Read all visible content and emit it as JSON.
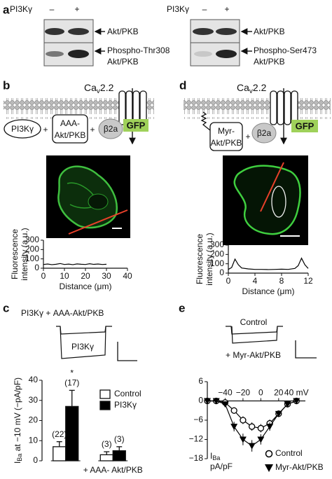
{
  "panel_a": {
    "label": "a",
    "blots": [
      {
        "condition": "PI3Kγ",
        "minus": "–",
        "plus": "+",
        "labels": [
          "Akt/PKB",
          "Phospho-Thr308",
          "Akt/PKB"
        ]
      },
      {
        "condition": "PI3Kγ",
        "minus": "–",
        "plus": "+",
        "labels": [
          "Akt/PKB",
          "Phospho-Ser473",
          "Akt/PKB"
        ]
      }
    ]
  },
  "panel_b": {
    "label": "b",
    "channel": {
      "main": "Ca",
      "sub": "v",
      "rest": "2.2"
    },
    "components": [
      "PI3Kγ",
      "+",
      "AAA-",
      "Akt/PKB",
      "+",
      "β2a",
      "GFP"
    ]
  },
  "panel_d": {
    "label": "d",
    "channel": {
      "main": "Ca",
      "sub": "v",
      "rest": "2.2"
    },
    "components": [
      "Myr-",
      "Akt/PKB",
      "+",
      "β2a",
      "GFP"
    ]
  },
  "panel_c": {
    "label": "c",
    "trace_labels": [
      "PI3Kγ + AAA-Akt/PKB",
      "PI3Kγ"
    ]
  },
  "panel_e": {
    "label": "e",
    "trace_labels": [
      "Control",
      "+ Myr-Akt/PKB"
    ]
  },
  "chart_data": [
    {
      "type": "line",
      "ylabel": [
        "Fluorescence",
        "intensity (a.u.)"
      ],
      "xlabel": "Distance (μm)",
      "x": [
        0,
        2,
        4,
        6,
        8,
        10,
        12,
        14,
        16,
        18,
        20,
        22,
        24,
        26,
        28,
        30
      ],
      "values": [
        40,
        45,
        38,
        42,
        50,
        40,
        44,
        38,
        46,
        42,
        40,
        48,
        41,
        45,
        40,
        42
      ],
      "color": "#000000",
      "xlim": [
        0,
        40
      ],
      "xticks": [
        0,
        10,
        20,
        30,
        40
      ],
      "ylim": [
        0,
        300
      ],
      "yticks": [
        0,
        100,
        200,
        300
      ]
    },
    {
      "type": "line",
      "ylabel": [
        "Fluorescence",
        "intensity (a.u.)"
      ],
      "xlabel": "Distance (μm)",
      "x": [
        0,
        0.5,
        1,
        1.5,
        2,
        3,
        4,
        5,
        6,
        7,
        8,
        9,
        10,
        10.5,
        11,
        11.5,
        12
      ],
      "values": [
        40,
        60,
        150,
        90,
        55,
        45,
        40,
        40,
        38,
        40,
        42,
        40,
        50,
        80,
        160,
        90,
        50
      ],
      "color": "#000000",
      "xlim": [
        0,
        12
      ],
      "xticks": [
        0,
        4,
        8,
        12
      ],
      "ylim": [
        0,
        300
      ],
      "yticks": [
        0,
        100,
        200,
        300
      ]
    },
    {
      "type": "bar",
      "ylabel": {
        "main": "I",
        "sub": "Ba",
        "rest": " at −10 mV (−pA/pF)"
      },
      "categories": [
        null,
        "+ AAA- Akt/PKB"
      ],
      "series": [
        {
          "name": "Control",
          "color": "#ffffff",
          "values": [
            7,
            3
          ],
          "errors": [
            2.5,
            1.5
          ],
          "n_labels": [
            "(22)",
            "(3)"
          ]
        },
        {
          "name": "PI3Kγ",
          "color": "#000000",
          "values": [
            27,
            5
          ],
          "errors": [
            8,
            2
          ],
          "n_labels": [
            "(17)",
            "(3)"
          ]
        }
      ],
      "annotations": [
        "*"
      ],
      "ylim": [
        0,
        40
      ],
      "yticks": [
        0,
        10,
        20,
        30,
        40
      ]
    },
    {
      "type": "line",
      "ylabel": {
        "main": "I",
        "sub": "Ba",
        "line2": "pA/pF"
      },
      "x": [
        -60,
        -50,
        -40,
        -30,
        -20,
        -10,
        0,
        10,
        20,
        30,
        40
      ],
      "series": [
        {
          "name": "Control",
          "color": "#000000",
          "marker": "circle-open",
          "values": [
            0,
            0,
            -0.5,
            -3,
            -6,
            -8,
            -8.5,
            -7,
            -4,
            -1,
            0
          ],
          "errors": [
            0.3,
            0.3,
            0.5,
            1,
            1.2,
            1.3,
            1.3,
            1.2,
            1,
            0.6,
            0.4
          ]
        },
        {
          "name": "Myr-Akt/PKB",
          "color": "#000000",
          "marker": "triangle-down",
          "values": [
            0,
            0,
            -1,
            -8,
            -12,
            -14,
            -12,
            -8,
            -4,
            -1,
            0
          ],
          "errors": [
            0.3,
            0.3,
            0.6,
            1.5,
            1.8,
            1.8,
            1.6,
            1.3,
            1,
            0.6,
            0.4
          ]
        }
      ],
      "xlim": [
        -60,
        50
      ],
      "xticks": [
        {
          "value": -40,
          "label": "−40"
        },
        {
          "value": -20,
          "label": "−20"
        },
        0,
        20,
        {
          "value": 40,
          "label": "40 mV"
        }
      ],
      "ylim": [
        -18,
        6
      ],
      "yticks": [
        6,
        0,
        {
          "value": -6,
          "label": "−6"
        },
        {
          "value": -12,
          "label": "−12"
        },
        {
          "value": -18,
          "label": "−18"
        }
      ]
    }
  ]
}
